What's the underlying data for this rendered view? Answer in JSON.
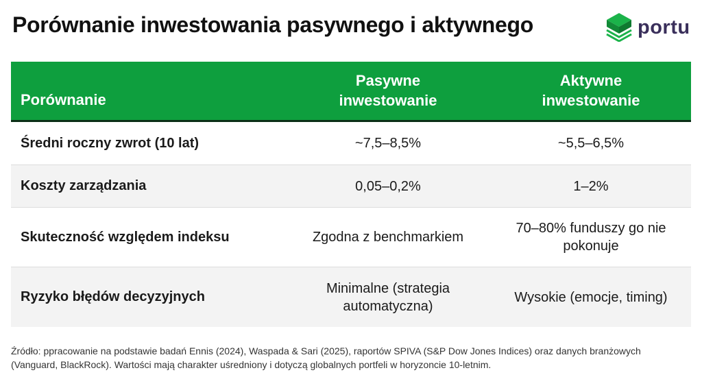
{
  "title": "Porównanie inwestowania pasywnego i aktywnego",
  "brand": {
    "name": "portu",
    "logo_icon": "stacked-cube-logo-icon",
    "logo_color": "#1bb34a",
    "name_color": "#3a2f5b"
  },
  "colors": {
    "header_bg": "#0e9f3e",
    "header_border": "#0b2f17",
    "row_alt_bg": "#f3f3f3"
  },
  "table": {
    "headers": [
      "Porównanie",
      "Pasywne inwestowanie",
      "Aktywne inwestowanie"
    ],
    "rows": [
      [
        "Średni roczny zwrot (10 lat)",
        "~7,5–8,5%",
        "~5,5–6,5%"
      ],
      [
        "Koszty zarządzania",
        "0,05–0,2%",
        "1–2%"
      ],
      [
        "Skuteczność względem indeksu",
        "Zgodna z benchmarkiem",
        "70–80% funduszy go nie pokonuje"
      ],
      [
        "Ryzyko błędów decyzyjnych",
        "Minimalne (strategia automatyczna)",
        "Wysokie (emocje, timing)"
      ]
    ]
  },
  "source": "Źródło: ppracowanie na podstawie badań Ennis (2024), Waspada & Sari (2025), raportów SPIVA (S&P Dow Jones Indices) oraz danych branżowych (Vanguard, BlackRock). Wartości mają charakter uśredniony i dotyczą globalnych portfeli w horyzoncie 10-letnim."
}
